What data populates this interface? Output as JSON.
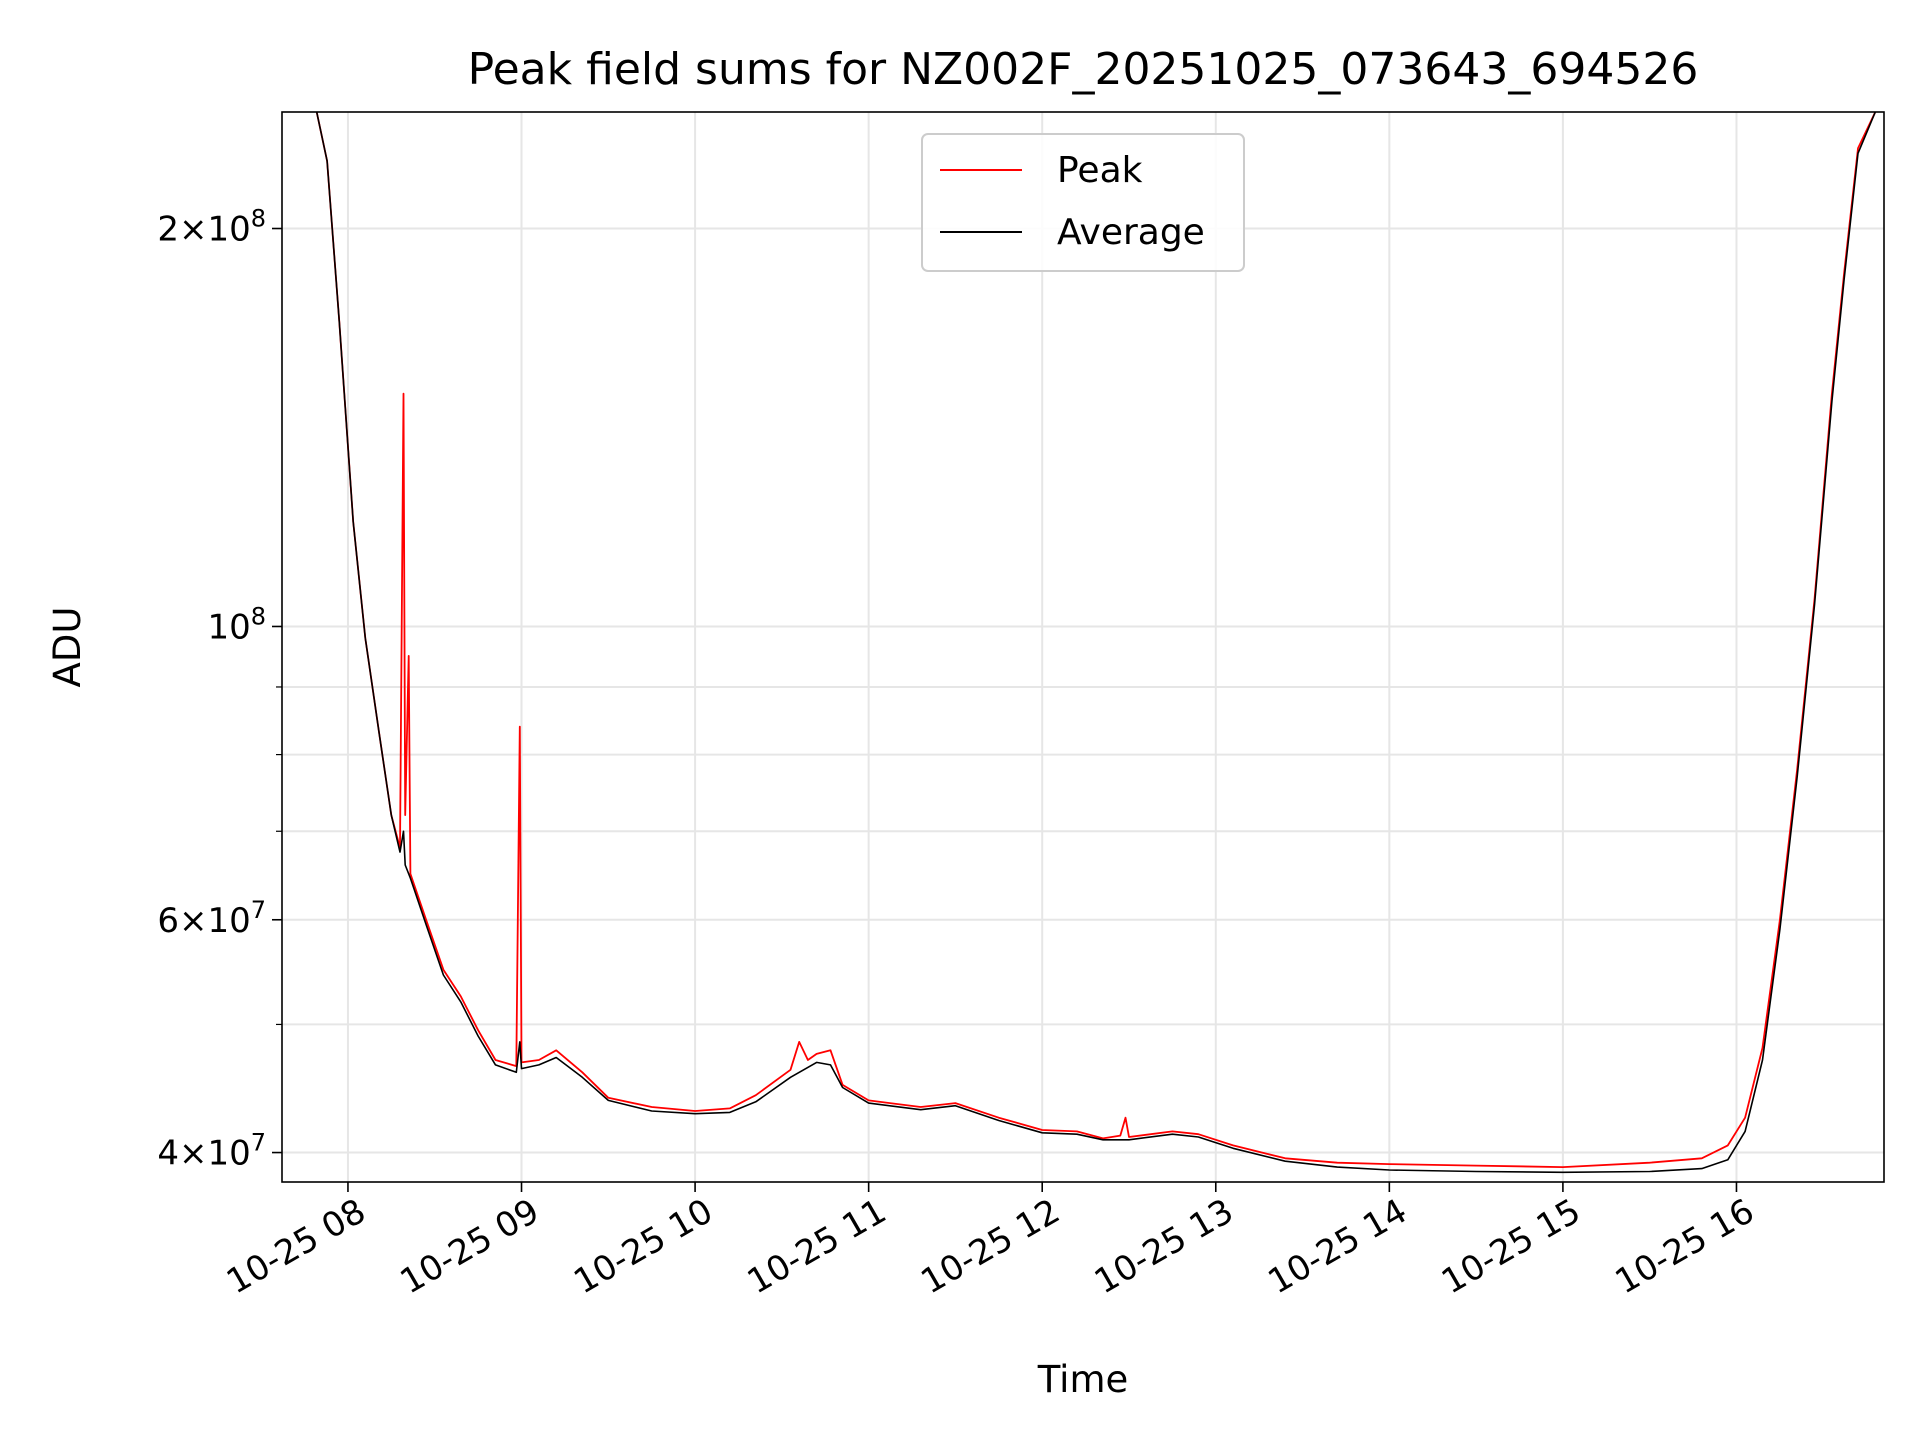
{
  "chart_data": {
    "type": "line",
    "title": "Peak field sums for NZ002F_20251025_073643_694526",
    "xlabel": "Time",
    "ylabel": "ADU",
    "y_scale": "log",
    "ylim": [
      38000000,
      245000000
    ],
    "xlim_hours": [
      7.62,
      16.85
    ],
    "grid": true,
    "legend_position": "upper-center",
    "x_ticks": [
      {
        "hour": 8,
        "label": "10-25 08"
      },
      {
        "hour": 9,
        "label": "10-25 09"
      },
      {
        "hour": 10,
        "label": "10-25 10"
      },
      {
        "hour": 11,
        "label": "10-25 11"
      },
      {
        "hour": 12,
        "label": "10-25 12"
      },
      {
        "hour": 13,
        "label": "10-25 13"
      },
      {
        "hour": 14,
        "label": "10-25 14"
      },
      {
        "hour": 15,
        "label": "10-25 15"
      },
      {
        "hour": 16,
        "label": "10-25 16"
      }
    ],
    "y_major_ticks": [
      {
        "value": 40000000,
        "base": "4",
        "exp": "7"
      },
      {
        "value": 60000000,
        "base": "6",
        "exp": "7"
      },
      {
        "value": 100000000,
        "base": "",
        "exp": "8"
      },
      {
        "value": 200000000,
        "base": "2",
        "exp": "8"
      }
    ],
    "y_minor_ticks": [
      50000000,
      70000000,
      80000000,
      90000000
    ],
    "series": [
      {
        "name": "Peak",
        "color": "#ff0000",
        "points": [
          [
            7.82,
            245000000
          ],
          [
            7.88,
            225000000
          ],
          [
            7.95,
            170000000
          ],
          [
            8.03,
            120000000
          ],
          [
            8.1,
            98000000
          ],
          [
            8.18,
            83000000
          ],
          [
            8.25,
            72000000
          ],
          [
            8.3,
            68000000
          ],
          [
            8.32,
            150000000
          ],
          [
            8.33,
            72000000
          ],
          [
            8.35,
            95000000
          ],
          [
            8.36,
            65000000
          ],
          [
            8.45,
            60000000
          ],
          [
            8.55,
            55000000
          ],
          [
            8.65,
            52500000
          ],
          [
            8.75,
            49500000
          ],
          [
            8.85,
            47000000
          ],
          [
            8.97,
            46500000
          ],
          [
            8.99,
            84000000
          ],
          [
            9.0,
            46800000
          ],
          [
            9.1,
            47000000
          ],
          [
            9.2,
            47800000
          ],
          [
            9.35,
            46000000
          ],
          [
            9.5,
            44000000
          ],
          [
            9.75,
            43300000
          ],
          [
            10.0,
            43000000
          ],
          [
            10.2,
            43200000
          ],
          [
            10.35,
            44200000
          ],
          [
            10.55,
            46200000
          ],
          [
            10.6,
            48500000
          ],
          [
            10.65,
            47000000
          ],
          [
            10.7,
            47500000
          ],
          [
            10.78,
            47800000
          ],
          [
            10.85,
            45000000
          ],
          [
            11.0,
            43800000
          ],
          [
            11.3,
            43300000
          ],
          [
            11.5,
            43600000
          ],
          [
            11.75,
            42500000
          ],
          [
            12.0,
            41600000
          ],
          [
            12.2,
            41500000
          ],
          [
            12.35,
            41000000
          ],
          [
            12.45,
            41200000
          ],
          [
            12.48,
            42500000
          ],
          [
            12.5,
            41100000
          ],
          [
            12.75,
            41500000
          ],
          [
            12.9,
            41300000
          ],
          [
            13.1,
            40500000
          ],
          [
            13.4,
            39600000
          ],
          [
            13.7,
            39300000
          ],
          [
            14.0,
            39200000
          ],
          [
            14.5,
            39100000
          ],
          [
            15.0,
            39000000
          ],
          [
            15.5,
            39300000
          ],
          [
            15.8,
            39600000
          ],
          [
            15.95,
            40500000
          ],
          [
            16.05,
            42500000
          ],
          [
            16.15,
            48000000
          ],
          [
            16.25,
            60000000
          ],
          [
            16.35,
            78000000
          ],
          [
            16.45,
            105000000
          ],
          [
            16.55,
            150000000
          ],
          [
            16.62,
            185000000
          ],
          [
            16.7,
            230000000
          ],
          [
            16.8,
            245000000
          ]
        ]
      },
      {
        "name": "Average",
        "color": "#000000",
        "points": [
          [
            7.82,
            245000000
          ],
          [
            7.88,
            225000000
          ],
          [
            7.95,
            170000000
          ],
          [
            8.03,
            120000000
          ],
          [
            8.1,
            98000000
          ],
          [
            8.18,
            83000000
          ],
          [
            8.25,
            72000000
          ],
          [
            8.3,
            67500000
          ],
          [
            8.32,
            70000000
          ],
          [
            8.33,
            66000000
          ],
          [
            8.36,
            64500000
          ],
          [
            8.45,
            59500000
          ],
          [
            8.55,
            54500000
          ],
          [
            8.65,
            52000000
          ],
          [
            8.75,
            49000000
          ],
          [
            8.85,
            46600000
          ],
          [
            8.97,
            46000000
          ],
          [
            8.99,
            48500000
          ],
          [
            9.0,
            46300000
          ],
          [
            9.1,
            46600000
          ],
          [
            9.2,
            47200000
          ],
          [
            9.35,
            45600000
          ],
          [
            9.5,
            43800000
          ],
          [
            9.75,
            43000000
          ],
          [
            10.0,
            42800000
          ],
          [
            10.2,
            42900000
          ],
          [
            10.35,
            43700000
          ],
          [
            10.55,
            45600000
          ],
          [
            10.7,
            46800000
          ],
          [
            10.78,
            46600000
          ],
          [
            10.85,
            44800000
          ],
          [
            11.0,
            43600000
          ],
          [
            11.3,
            43100000
          ],
          [
            11.5,
            43400000
          ],
          [
            11.75,
            42300000
          ],
          [
            12.0,
            41400000
          ],
          [
            12.2,
            41300000
          ],
          [
            12.35,
            40900000
          ],
          [
            12.5,
            40900000
          ],
          [
            12.75,
            41300000
          ],
          [
            12.9,
            41100000
          ],
          [
            13.1,
            40300000
          ],
          [
            13.4,
            39400000
          ],
          [
            13.7,
            39000000
          ],
          [
            14.0,
            38800000
          ],
          [
            14.5,
            38700000
          ],
          [
            15.0,
            38650000
          ],
          [
            15.5,
            38700000
          ],
          [
            15.8,
            38900000
          ],
          [
            15.95,
            39500000
          ],
          [
            16.05,
            41500000
          ],
          [
            16.15,
            47000000
          ],
          [
            16.25,
            59000000
          ],
          [
            16.35,
            77000000
          ],
          [
            16.45,
            104000000
          ],
          [
            16.55,
            148000000
          ],
          [
            16.62,
            183000000
          ],
          [
            16.7,
            228000000
          ],
          [
            16.8,
            245000000
          ]
        ]
      }
    ],
    "legend": [
      {
        "name": "Peak",
        "color": "#ff0000"
      },
      {
        "name": "Average",
        "color": "#000000"
      }
    ]
  }
}
